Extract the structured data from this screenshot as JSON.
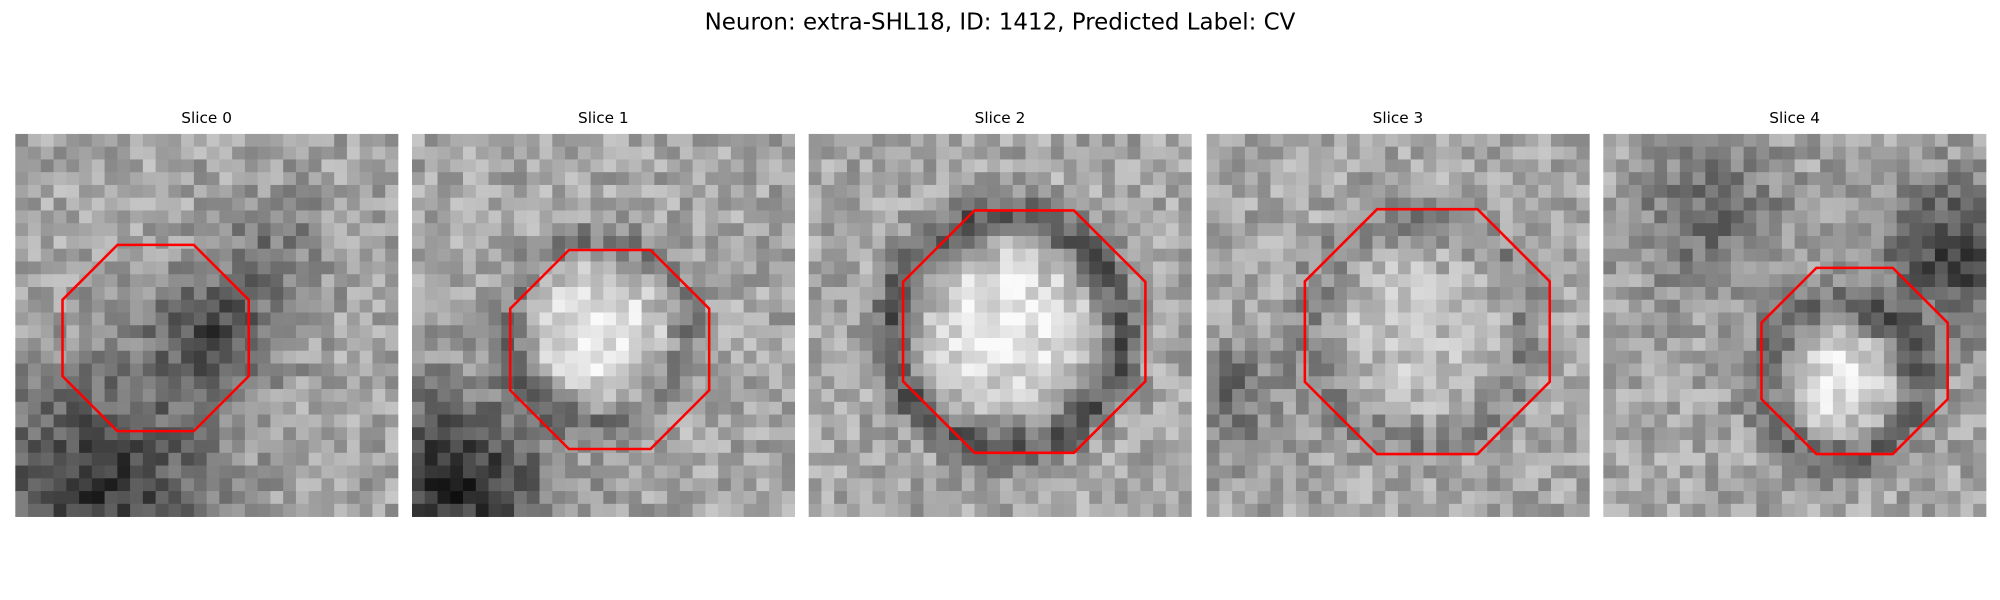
{
  "title": "Neuron: extra-SHL18, ID: 1412, Predicted Label: CV",
  "panels": [
    {
      "title": "Slice 0"
    },
    {
      "title": "Slice 1"
    },
    {
      "title": "Slice 2"
    },
    {
      "title": "Slice 3"
    },
    {
      "title": "Slice 4"
    }
  ]
}
